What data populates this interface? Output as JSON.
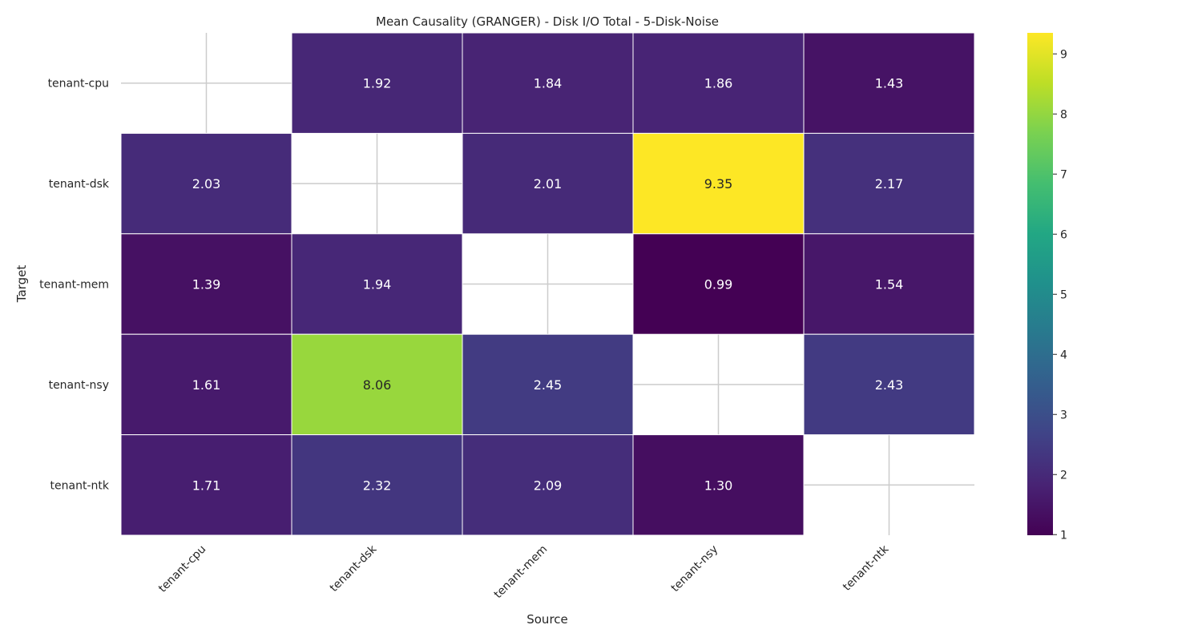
{
  "chart_data": {
    "type": "heatmap",
    "title": "Mean Causality (GRANGER) - Disk I/O Total - 5-Disk-Noise",
    "xlabel": "Source",
    "ylabel": "Target",
    "x_categories": [
      "tenant-cpu",
      "tenant-dsk",
      "tenant-mem",
      "tenant-nsy",
      "tenant-ntk"
    ],
    "y_categories": [
      "tenant-cpu",
      "tenant-dsk",
      "tenant-mem",
      "tenant-nsy",
      "tenant-ntk"
    ],
    "values": [
      [
        null,
        1.92,
        1.84,
        1.86,
        1.43
      ],
      [
        2.03,
        null,
        2.01,
        9.35,
        2.17
      ],
      [
        1.39,
        1.94,
        null,
        0.99,
        1.54
      ],
      [
        1.61,
        8.06,
        2.45,
        null,
        2.43
      ],
      [
        1.71,
        2.32,
        2.09,
        1.3,
        null
      ]
    ],
    "value_format": "0.00",
    "colormap": "viridis",
    "vmin": 0.99,
    "vmax": 9.35,
    "colorbar_ticks": [
      1,
      2,
      3,
      4,
      5,
      6,
      7,
      8,
      9
    ],
    "grid": true,
    "colors": {
      "cell_border": "#ffffff",
      "grid": "#cccccc",
      "text_light": "#ffffff",
      "text_dark": "#262626"
    }
  }
}
